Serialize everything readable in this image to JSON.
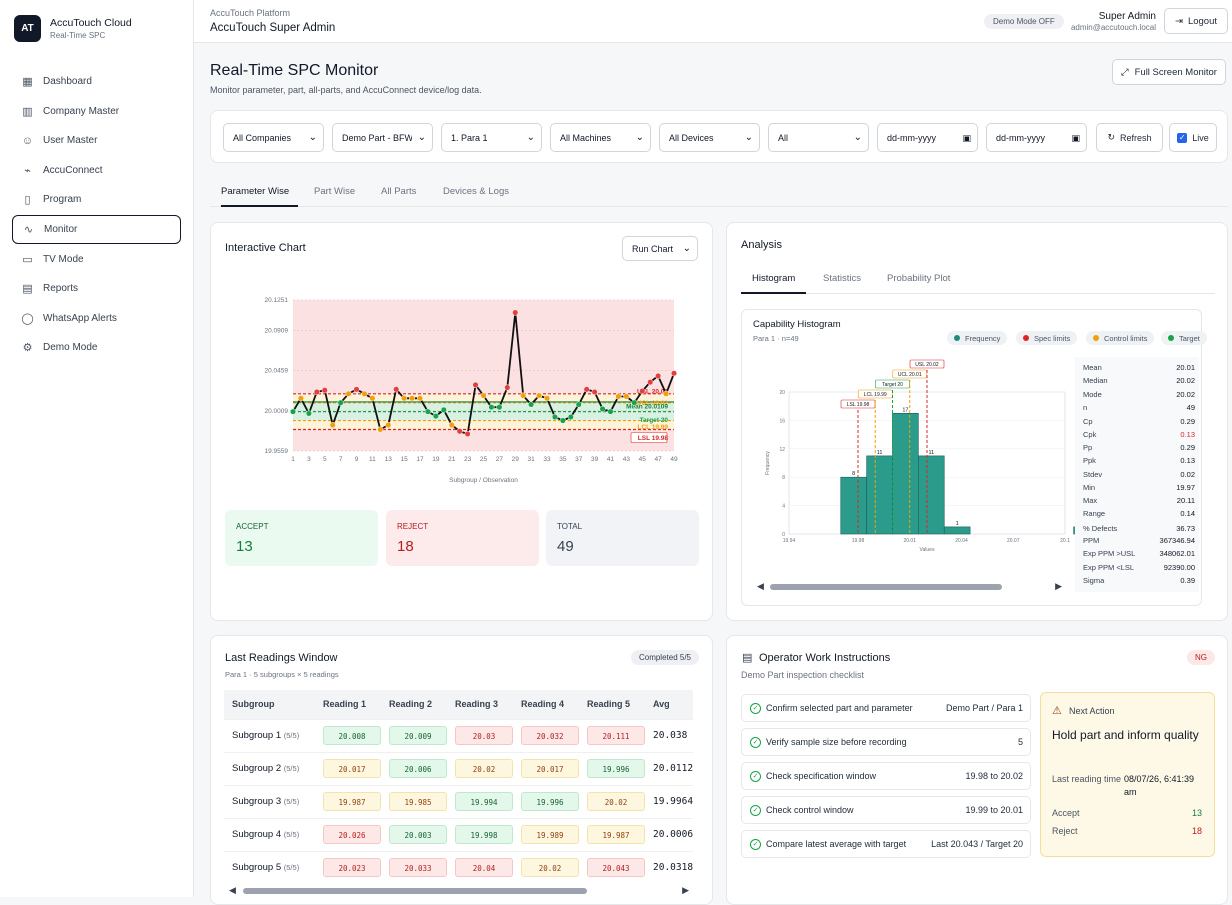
{
  "brand": {
    "logo": "AT",
    "name": "AccuTouch Cloud",
    "sub": "Real-Time SPC"
  },
  "nav": [
    {
      "label": "Dashboard",
      "icon": "grid-icon",
      "glyph": "▦"
    },
    {
      "label": "Company Master",
      "icon": "building-icon",
      "glyph": "▥"
    },
    {
      "label": "User Master",
      "icon": "user-icon",
      "glyph": "☺"
    },
    {
      "label": "AccuConnect",
      "icon": "plug-icon",
      "glyph": "⌁"
    },
    {
      "label": "Program",
      "icon": "file-icon",
      "glyph": "▯"
    },
    {
      "label": "Monitor",
      "icon": "activity-icon",
      "glyph": "∿"
    },
    {
      "label": "TV Mode",
      "icon": "tv-icon",
      "glyph": "▭"
    },
    {
      "label": "Reports",
      "icon": "report-icon",
      "glyph": "▤"
    },
    {
      "label": "WhatsApp Alerts",
      "icon": "chat-icon",
      "glyph": "◯"
    },
    {
      "label": "Demo Mode",
      "icon": "gear-icon",
      "glyph": "⚙"
    }
  ],
  "topbar": {
    "platform": "AccuTouch Platform",
    "role": "AccuTouch Super Admin",
    "demo": "Demo Mode OFF",
    "user_name": "Super Admin",
    "user_email": "admin@accutouch.local",
    "logout": "Logout"
  },
  "page": {
    "title": "Real-Time SPC Monitor",
    "desc": "Monitor parameter, part, all-parts, and AccuConnect device/log data.",
    "fullscreen": "Full Screen Monitor"
  },
  "filters": {
    "company": "All Companies",
    "part": "Demo Part - BFW",
    "para": "1. Para 1",
    "machines": "All Machines",
    "devices": "All Devices",
    "status": "All",
    "date_from": "dd-mm-yyyy",
    "date_to": "dd-mm-yyyy",
    "refresh": "Refresh",
    "live": "Live"
  },
  "tabs": [
    "Parameter Wise",
    "Part Wise",
    "All Parts",
    "Devices & Logs"
  ],
  "interactive": {
    "title": "Interactive Chart",
    "chart_type": "Run Chart",
    "accept_label": "ACCEPT",
    "accept": "13",
    "reject_label": "REJECT",
    "reject": "18",
    "total_label": "TOTAL",
    "total": "49"
  },
  "analysis": {
    "title": "Analysis",
    "tabs": [
      "Histogram",
      "Statistics",
      "Probability Plot"
    ],
    "hist_title": "Capability Histogram",
    "hist_sub": "Para 1 · n=49",
    "legend": [
      {
        "label": "Frequency",
        "color": "#1f8a7a"
      },
      {
        "label": "Spec limits",
        "color": "#dc2626"
      },
      {
        "label": "Control limits",
        "color": "#f59e0b"
      },
      {
        "label": "Target",
        "color": "#16a34a"
      }
    ],
    "stats": [
      [
        "Mean",
        "20.01"
      ],
      [
        "Median",
        "20.02"
      ],
      [
        "Mode",
        "20.02"
      ],
      [
        "n",
        "49"
      ],
      [
        "Cp",
        "0.29"
      ],
      [
        "Cpk",
        "0.13"
      ],
      [
        "Pp",
        "0.29"
      ],
      [
        "Ppk",
        "0.13"
      ],
      [
        "Stdev",
        "0.02"
      ],
      [
        "Min",
        "19.97"
      ],
      [
        "Max",
        "20.11"
      ],
      [
        "Range",
        "0.14"
      ],
      [
        "% Defects",
        "36.73"
      ],
      [
        "PPM",
        "367346.94"
      ],
      [
        "Exp PPM >USL",
        "348062.01"
      ],
      [
        "Exp PPM <LSL",
        "92390.00"
      ],
      [
        "Sigma",
        "0.39"
      ]
    ]
  },
  "readings": {
    "title": "Last Readings Window",
    "sub": "Para 1 · 5 subgroups × 5 readings",
    "badge": "Completed 5/5",
    "headers": [
      "Subgroup",
      "Reading 1",
      "Reading 2",
      "Reading 3",
      "Reading 4",
      "Reading 5",
      "Avg"
    ],
    "rows": [
      {
        "name": "Subgroup 1",
        "count": "(5/5)",
        "vals": [
          "20.008",
          "20.009",
          "20.03",
          "20.032",
          "20.111"
        ],
        "cls": [
          "g",
          "g",
          "r",
          "r",
          "r"
        ],
        "avg": "20.038"
      },
      {
        "name": "Subgroup 2",
        "count": "(5/5)",
        "vals": [
          "20.017",
          "20.006",
          "20.02",
          "20.017",
          "19.996"
        ],
        "cls": [
          "y",
          "g",
          "y",
          "y",
          "g"
        ],
        "avg": "20.0112"
      },
      {
        "name": "Subgroup 3",
        "count": "(5/5)",
        "vals": [
          "19.987",
          "19.985",
          "19.994",
          "19.996",
          "20.02"
        ],
        "cls": [
          "y",
          "y",
          "g",
          "g",
          "y"
        ],
        "avg": "19.9964"
      },
      {
        "name": "Subgroup 4",
        "count": "(5/5)",
        "vals": [
          "20.026",
          "20.003",
          "19.998",
          "19.989",
          "19.987"
        ],
        "cls": [
          "r",
          "g",
          "g",
          "y",
          "y"
        ],
        "avg": "20.0006"
      },
      {
        "name": "Subgroup 5",
        "count": "(5/5)",
        "vals": [
          "20.023",
          "20.033",
          "20.04",
          "20.02",
          "20.043"
        ],
        "cls": [
          "r",
          "r",
          "r",
          "y",
          "r"
        ],
        "avg": "20.0318"
      }
    ]
  },
  "work": {
    "title": "Operator Work Instructions",
    "sub": "Demo Part inspection checklist",
    "badge": "NG",
    "items": [
      [
        "Confirm selected part and parameter",
        "Demo Part / Para 1"
      ],
      [
        "Verify sample size before recording",
        "5"
      ],
      [
        "Check specification window",
        "19.98 to 20.02"
      ],
      [
        "Check control window",
        "19.99 to 20.01"
      ],
      [
        "Compare latest average with target",
        "Last 20.043 / Target 20"
      ]
    ],
    "next": {
      "label": "Next Action",
      "headline": "Hold part and inform quality",
      "last_label": "Last reading time",
      "last_value": "08/07/26, 6:41:39 am",
      "accept_label": "Accept",
      "accept": "13",
      "reject_label": "Reject",
      "reject": "18"
    }
  },
  "chart_data": [
    {
      "type": "line",
      "title": "",
      "xlabel": "Subgroup / Observation",
      "ylabel": "",
      "x_ticks": [
        "1",
        "3",
        "5",
        "7",
        "9",
        "11",
        "13",
        "15",
        "17",
        "19",
        "21",
        "23",
        "25",
        "27",
        "29",
        "31",
        "33",
        "35",
        "37",
        "39",
        "41",
        "43",
        "45",
        "47",
        "49"
      ],
      "y_ticks": [
        "20.1251",
        "20.0909",
        "20.0459",
        "20.0009",
        "19.9559"
      ],
      "ylim": [
        19.9559,
        20.1251
      ],
      "limits": {
        "USL": 20.02,
        "UCL": 20.01,
        "Mean": 20.0109,
        "Target": 20,
        "LCL": 19.99,
        "LSL": 19.98
      },
      "limit_labels": [
        "USL 20.02",
        "UCL 20.01",
        "Mean 20.0109",
        "Target 20",
        "LCL 19.99",
        "LSL 19.98"
      ],
      "values": [
        20.0,
        20.015,
        19.998,
        20.022,
        20.024,
        19.985,
        20.01,
        20.02,
        20.025,
        20.02,
        20.015,
        19.98,
        19.985,
        20.025,
        20.015,
        20.015,
        20.015,
        20.0,
        19.995,
        20.002,
        19.985,
        19.978,
        19.975,
        20.03,
        20.018,
        20.005,
        20.005,
        20.027,
        20.111,
        20.018,
        20.008,
        20.018,
        20.015,
        19.994,
        19.99,
        19.994,
        20.008,
        20.025,
        20.022,
        20.003,
        20.0,
        20.017,
        20.017,
        20.01,
        20.023,
        20.033,
        20.04,
        20.02,
        20.043
      ]
    },
    {
      "type": "bar",
      "title": "Capability Histogram",
      "xlabel": "Values",
      "ylabel": "Frequency",
      "x_ticks": [
        "19.94",
        "19.98",
        "20.01",
        "20.04",
        "20.07",
        "20.1"
      ],
      "y_ticks": [
        "0",
        "4",
        "8",
        "12",
        "16",
        "20"
      ],
      "ylim": [
        0,
        20
      ],
      "bins": [
        [
          19.97,
          19.985
        ],
        [
          19.985,
          20.0
        ],
        [
          20.0,
          20.015
        ],
        [
          20.015,
          20.03
        ],
        [
          20.03,
          20.045
        ],
        [
          20.045,
          20.06
        ],
        [
          20.06,
          20.075
        ],
        [
          20.075,
          20.09
        ],
        [
          20.09,
          20.105
        ],
        [
          20.105,
          20.12
        ]
      ],
      "values": [
        8,
        11,
        17,
        11,
        1,
        0,
        0,
        0,
        0,
        1
      ],
      "limit_labels": [
        "LSL 19.98",
        "LCL 19.99",
        "Target 20",
        "UCL 20.01",
        "USL 20.02"
      ]
    }
  ]
}
